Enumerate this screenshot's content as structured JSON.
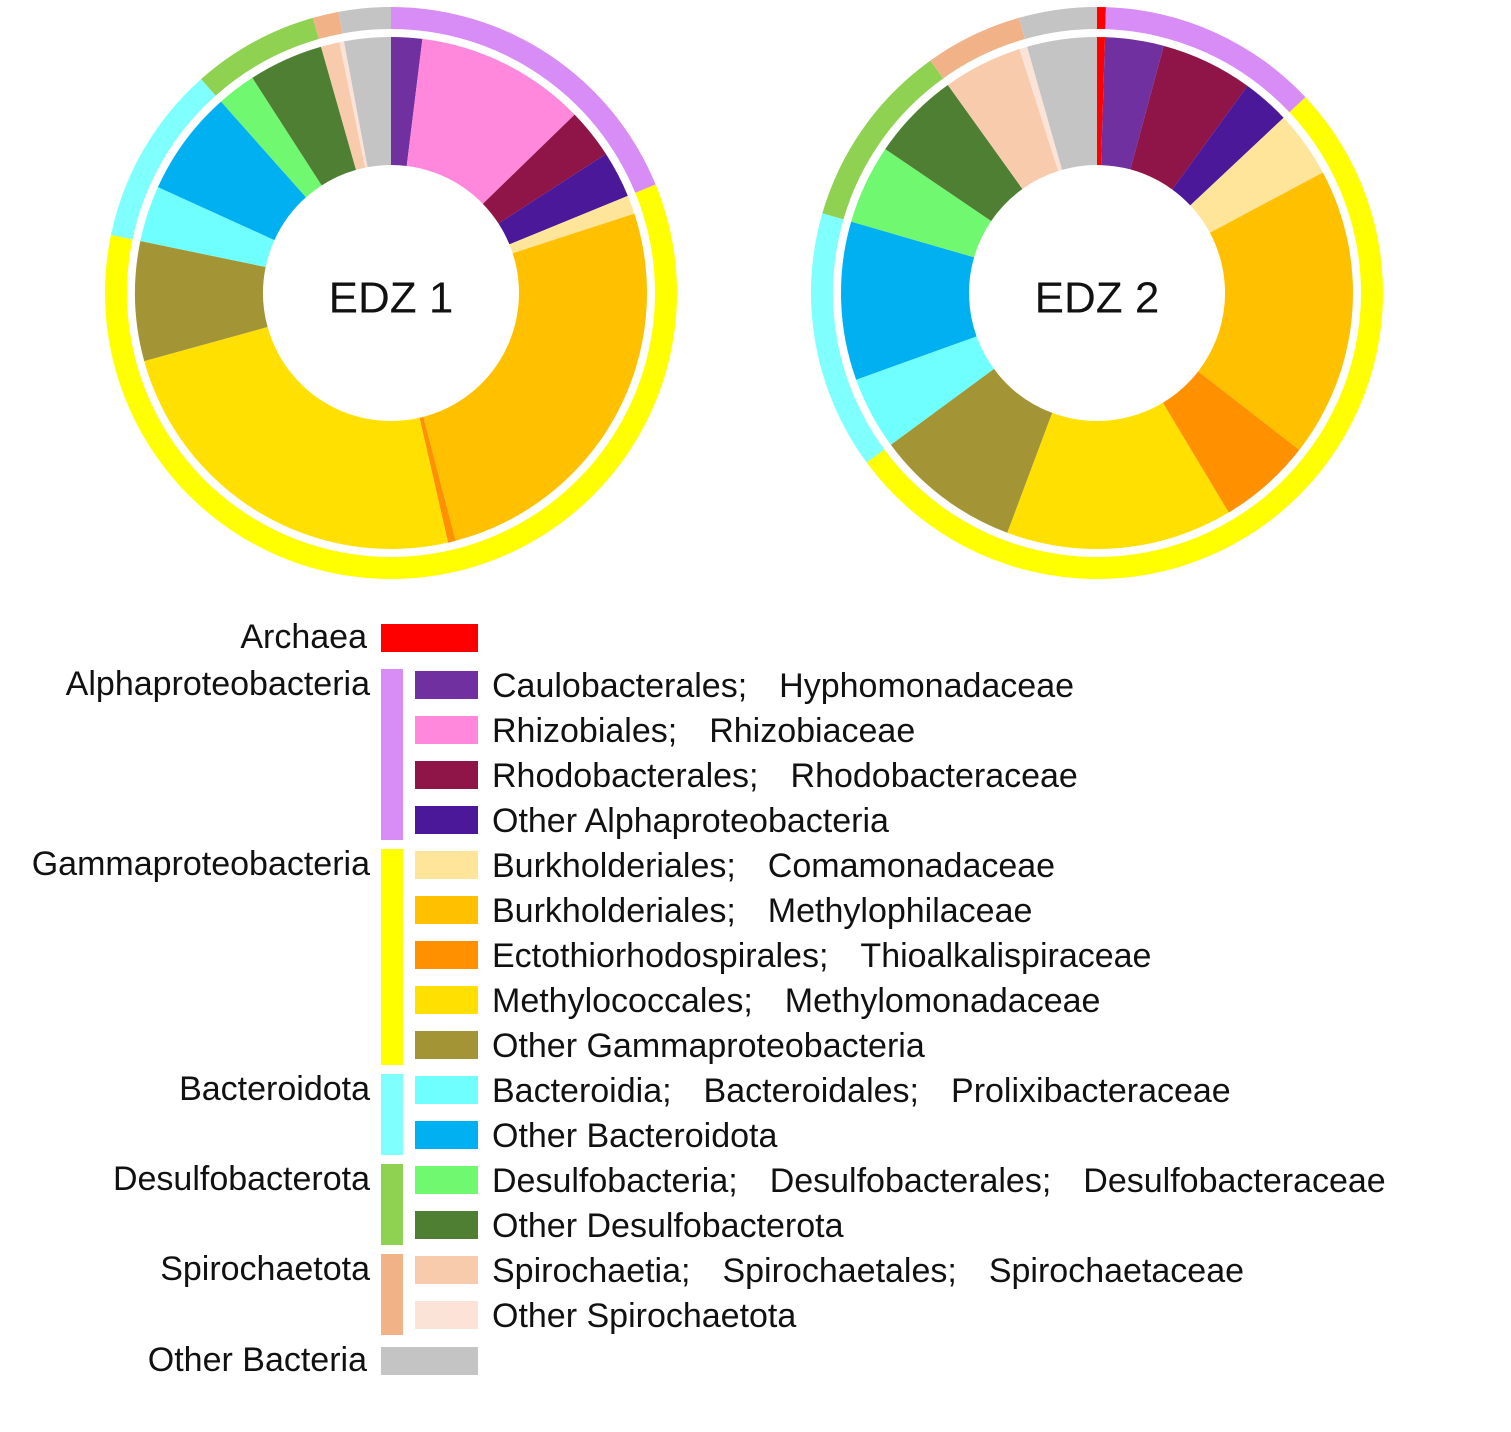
{
  "colors": {
    "archaea": "#ff0000",
    "alpha": "#d88cf5",
    "gamma": "#ffff00",
    "bacteroidota": "#80ffff",
    "desulfobacterota": "#8fd150",
    "spirochaetota": "#f2b287",
    "other_bacteria": "#c4c4c4",
    "caulobacterales": "#7030a0",
    "rhizobiales": "#ff88dd",
    "rhodobacterales": "#8f1448",
    "other_alpha": "#4b189a",
    "comamonadaceae": "#ffe599",
    "methylophilaceae": "#ffc000",
    "thioalkalispiraceae": "#ff9000",
    "methylomonadaceae": "#ffe000",
    "other_gamma": "#a39535",
    "prolixibacteraceae": "#70ffff",
    "other_bacteroidota": "#00b0f0",
    "desulfobacteraceae": "#70f870",
    "other_desulfobacterota": "#4e7f33",
    "spirochaetaceae": "#f8cbad",
    "other_spirochaetota": "#fbe3d8"
  },
  "chart_data": [
    {
      "type": "pie",
      "title": "EDZ 1",
      "inner_ring": [
        {
          "name": "Archaea",
          "value": 0,
          "color_key": "archaea"
        },
        {
          "name": "Caulobacterales; Hyphomonadaceae",
          "value": 2.0,
          "color_key": "caulobacterales"
        },
        {
          "name": "Rhizobiales; Rhizobiaceae",
          "value": 11.0,
          "color_key": "rhizobiales"
        },
        {
          "name": "Rhodobacterales; Rhodobacteraceae",
          "value": 3.2,
          "color_key": "rhodobacterales"
        },
        {
          "name": "Other Alphaproteobacteria",
          "value": 3.0,
          "color_key": "other_alpha"
        },
        {
          "name": "Burkholderiales; Comamonadaceae",
          "value": 1.2,
          "color_key": "comamonadaceae"
        },
        {
          "name": "Burkholderiales; Methylophilaceae",
          "value": 26.5,
          "color_key": "methylophilaceae"
        },
        {
          "name": "Ectothiorhodospirales; Thioalkalispiraceae",
          "value": 0.5,
          "color_key": "thioalkalispiraceae"
        },
        {
          "name": "Methylococcales; Methylomonadaceae",
          "value": 24.8,
          "color_key": "methylomonadaceae"
        },
        {
          "name": "Other Gammaproteobacteria",
          "value": 7.7,
          "color_key": "other_gamma"
        },
        {
          "name": "Bacteroidia; Bacteroidales; Prolixibacteraceae",
          "value": 3.6,
          "color_key": "prolixibacteraceae"
        },
        {
          "name": "Other Bacteroidota",
          "value": 6.8,
          "color_key": "other_bacteroidota"
        },
        {
          "name": "Desulfobacteria; Desulfobacterales; Desulfobacteraceae",
          "value": 2.5,
          "color_key": "desulfobacteraceae"
        },
        {
          "name": "Other Desulfobacterota",
          "value": 4.8,
          "color_key": "other_desulfobacterota"
        },
        {
          "name": "Spirochaetia; Spirochaetales; Spirochaetaceae",
          "value": 1.2,
          "color_key": "spirochaetaceae"
        },
        {
          "name": "Other Spirochaetota",
          "value": 0.3,
          "color_key": "other_spirochaetota"
        },
        {
          "name": "Other Bacteria",
          "value": 3.0,
          "color_key": "other_bacteria"
        }
      ],
      "outer_ring": [
        {
          "name": "Archaea",
          "value": 0,
          "color_key": "archaea"
        },
        {
          "name": "Alphaproteobacteria",
          "value": 19.2,
          "color_key": "alpha"
        },
        {
          "name": "Gammaproteobacteria",
          "value": 60.7,
          "color_key": "gamma"
        },
        {
          "name": "Bacteroidota",
          "value": 10.4,
          "color_key": "bacteroidota"
        },
        {
          "name": "Desulfobacterota",
          "value": 7.3,
          "color_key": "desulfobacterota"
        },
        {
          "name": "Spirochaetota",
          "value": 1.5,
          "color_key": "spirochaetota"
        },
        {
          "name": "Other Bacteria",
          "value": 3.0,
          "color_key": "other_bacteria"
        }
      ]
    },
    {
      "type": "pie",
      "title": "EDZ 2",
      "inner_ring": [
        {
          "name": "Archaea",
          "value": 0.5,
          "color_key": "archaea"
        },
        {
          "name": "Caulobacterales; Hyphomonadaceae",
          "value": 3.7,
          "color_key": "caulobacterales"
        },
        {
          "name": "Rhizobiales; Rhizobiaceae",
          "value": 0,
          "color_key": "rhizobiales"
        },
        {
          "name": "Rhodobacterales; Rhodobacteraceae",
          "value": 5.8,
          "color_key": "rhodobacterales"
        },
        {
          "name": "Other Alphaproteobacteria",
          "value": 3.0,
          "color_key": "other_alpha"
        },
        {
          "name": "Burkholderiales; Comamonadaceae",
          "value": 4.2,
          "color_key": "comamonadaceae"
        },
        {
          "name": "Burkholderiales; Methylophilaceae",
          "value": 18.3,
          "color_key": "methylophilaceae"
        },
        {
          "name": "Ectothiorhodospirales; Thioalkalispiraceae",
          "value": 5.9,
          "color_key": "thioalkalispiraceae"
        },
        {
          "name": "Methylococcales; Methylomonadaceae",
          "value": 14.3,
          "color_key": "methylomonadaceae"
        },
        {
          "name": "Other Gammaproteobacteria",
          "value": 9.2,
          "color_key": "other_gamma"
        },
        {
          "name": "Bacteroidia; Bacteroidales; Prolixibacteraceae",
          "value": 4.6,
          "color_key": "prolixibacteraceae"
        },
        {
          "name": "Other Bacteroidota",
          "value": 10.0,
          "color_key": "other_bacteroidota"
        },
        {
          "name": "Desulfobacteria; Desulfobacterales; Desulfobacteraceae",
          "value": 5.0,
          "color_key": "desulfobacteraceae"
        },
        {
          "name": "Other Desulfobacterota",
          "value": 5.6,
          "color_key": "other_desulfobacterota"
        },
        {
          "name": "Spirochaetia; Spirochaetales; Spirochaetaceae",
          "value": 5.0,
          "color_key": "spirochaetaceae"
        },
        {
          "name": "Other Spirochaetota",
          "value": 0.5,
          "color_key": "other_spirochaetota"
        },
        {
          "name": "Other Bacteria",
          "value": 4.4,
          "color_key": "other_bacteria"
        }
      ],
      "outer_ring": [
        {
          "name": "Archaea",
          "value": 0.5,
          "color_key": "archaea"
        },
        {
          "name": "Alphaproteobacteria",
          "value": 12.5,
          "color_key": "alpha"
        },
        {
          "name": "Gammaproteobacteria",
          "value": 51.9,
          "color_key": "gamma"
        },
        {
          "name": "Bacteroidota",
          "value": 14.6,
          "color_key": "bacteroidota"
        },
        {
          "name": "Desulfobacterota",
          "value": 10.6,
          "color_key": "desulfobacterota"
        },
        {
          "name": "Spirochaetota",
          "value": 5.5,
          "color_key": "spirochaetota"
        },
        {
          "name": "Other Bacteria",
          "value": 4.4,
          "color_key": "other_bacteria"
        }
      ]
    }
  ],
  "legend": {
    "groups": [
      {
        "label": "Archaea",
        "color_key": "archaea",
        "items": []
      },
      {
        "label": "Alphaproteobacteria",
        "color_key": "alpha",
        "items": [
          {
            "parts": [
              "Caulobacterales;",
              "Hyphomonadaceae"
            ],
            "color_key": "caulobacterales"
          },
          {
            "parts": [
              "Rhizobiales;",
              "Rhizobiaceae"
            ],
            "color_key": "rhizobiales"
          },
          {
            "parts": [
              "Rhodobacterales;",
              "Rhodobacteraceae"
            ],
            "color_key": "rhodobacterales"
          },
          {
            "parts": [
              "Other Alphaproteobacteria"
            ],
            "color_key": "other_alpha"
          }
        ]
      },
      {
        "label": "Gammaproteobacteria",
        "color_key": "gamma",
        "items": [
          {
            "parts": [
              "Burkholderiales;",
              "Comamonadaceae"
            ],
            "color_key": "comamonadaceae"
          },
          {
            "parts": [
              "Burkholderiales;",
              "Methylophilaceae"
            ],
            "color_key": "methylophilaceae"
          },
          {
            "parts": [
              "Ectothiorhodospirales;",
              "Thioalkalispiraceae"
            ],
            "color_key": "thioalkalispiraceae"
          },
          {
            "parts": [
              "Methylococcales;",
              "Methylomonadaceae"
            ],
            "color_key": "methylomonadaceae"
          },
          {
            "parts": [
              "Other Gammaproteobacteria"
            ],
            "color_key": "other_gamma"
          }
        ]
      },
      {
        "label": "Bacteroidota",
        "color_key": "bacteroidota",
        "items": [
          {
            "parts": [
              "Bacteroidia;",
              "Bacteroidales;",
              "Prolixibacteraceae"
            ],
            "color_key": "prolixibacteraceae"
          },
          {
            "parts": [
              "Other Bacteroidota"
            ],
            "color_key": "other_bacteroidota"
          }
        ]
      },
      {
        "label": "Desulfobacterota",
        "color_key": "desulfobacterota",
        "items": [
          {
            "parts": [
              "Desulfobacteria;",
              "Desulfobacterales;",
              "Desulfobacteraceae"
            ],
            "color_key": "desulfobacteraceae"
          },
          {
            "parts": [
              "Other Desulfobacterota"
            ],
            "color_key": "other_desulfobacterota"
          }
        ]
      },
      {
        "label": "Spirochaetota",
        "color_key": "spirochaetota",
        "items": [
          {
            "parts": [
              "Spirochaetia;",
              "Spirochaetales;",
              "Spirochaetaceae"
            ],
            "color_key": "spirochaetaceae"
          },
          {
            "parts": [
              "Other Spirochaetota"
            ],
            "color_key": "other_spirochaetota"
          }
        ]
      },
      {
        "label": "Other Bacteria",
        "color_key": "other_bacteria",
        "items": []
      }
    ]
  }
}
